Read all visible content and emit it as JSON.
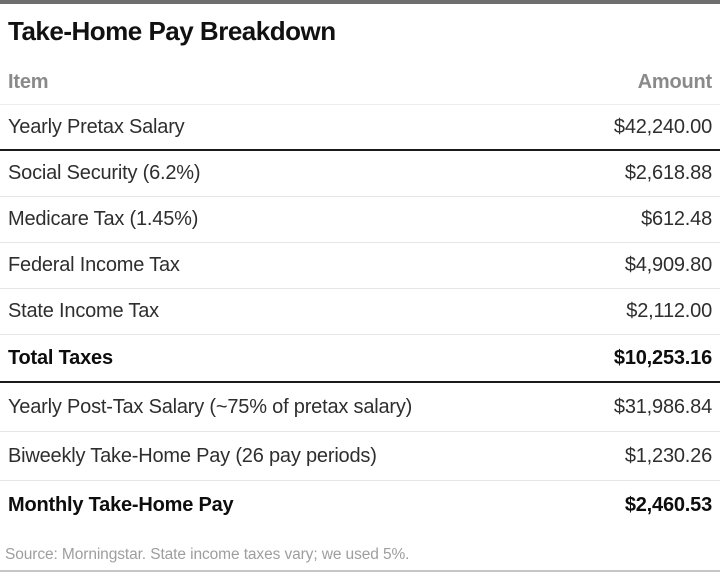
{
  "chart_data": {
    "type": "table",
    "title": "Take-Home Pay Breakdown",
    "columns": [
      "Item",
      "Amount"
    ],
    "rows": [
      [
        "Yearly Pretax Salary",
        "$42,240.00"
      ],
      [
        "Social Security (6.2%)",
        "$2,618.88"
      ],
      [
        "Medicare Tax (1.45%)",
        "$612.48"
      ],
      [
        "Federal Income Tax",
        "$4,909.80"
      ],
      [
        "State Income Tax",
        "$2,112.00"
      ],
      [
        "Total Taxes",
        "$10,253.16"
      ],
      [
        "Yearly Post-Tax Salary (~75% of pretax salary)",
        "$31,986.84"
      ],
      [
        "Biweekly Take-Home Pay (26 pay periods)",
        "$1,230.26"
      ],
      [
        "Monthly Take-Home Pay",
        "$2,460.53"
      ]
    ],
    "emphasized_rows": [
      5,
      8
    ],
    "numeric_values": {
      "yearly_pretax_salary": 42240.0,
      "social_security_6_2_pct": 2618.88,
      "medicare_tax_1_45_pct": 612.48,
      "federal_income_tax": 4909.8,
      "state_income_tax": 2112.0,
      "total_taxes": 10253.16,
      "yearly_post_tax_salary": 31986.84,
      "biweekly_take_home_pay": 1230.26,
      "monthly_take_home_pay": 2460.53
    },
    "source_note": "Source: Morningstar. State income taxes vary; we used 5%."
  },
  "colors": {
    "top_bar": "#6e6e6e",
    "heavy_rule": "#1a1a1a",
    "light_rule": "#e6e6e6",
    "bottom_rule": "#c6c6c6",
    "header_text": "#8a8a8a",
    "body_text": "#2e2e2e",
    "emphasis_text": "#0d0d0d",
    "source_text": "#9e9e9e",
    "background": "#ffffff"
  }
}
